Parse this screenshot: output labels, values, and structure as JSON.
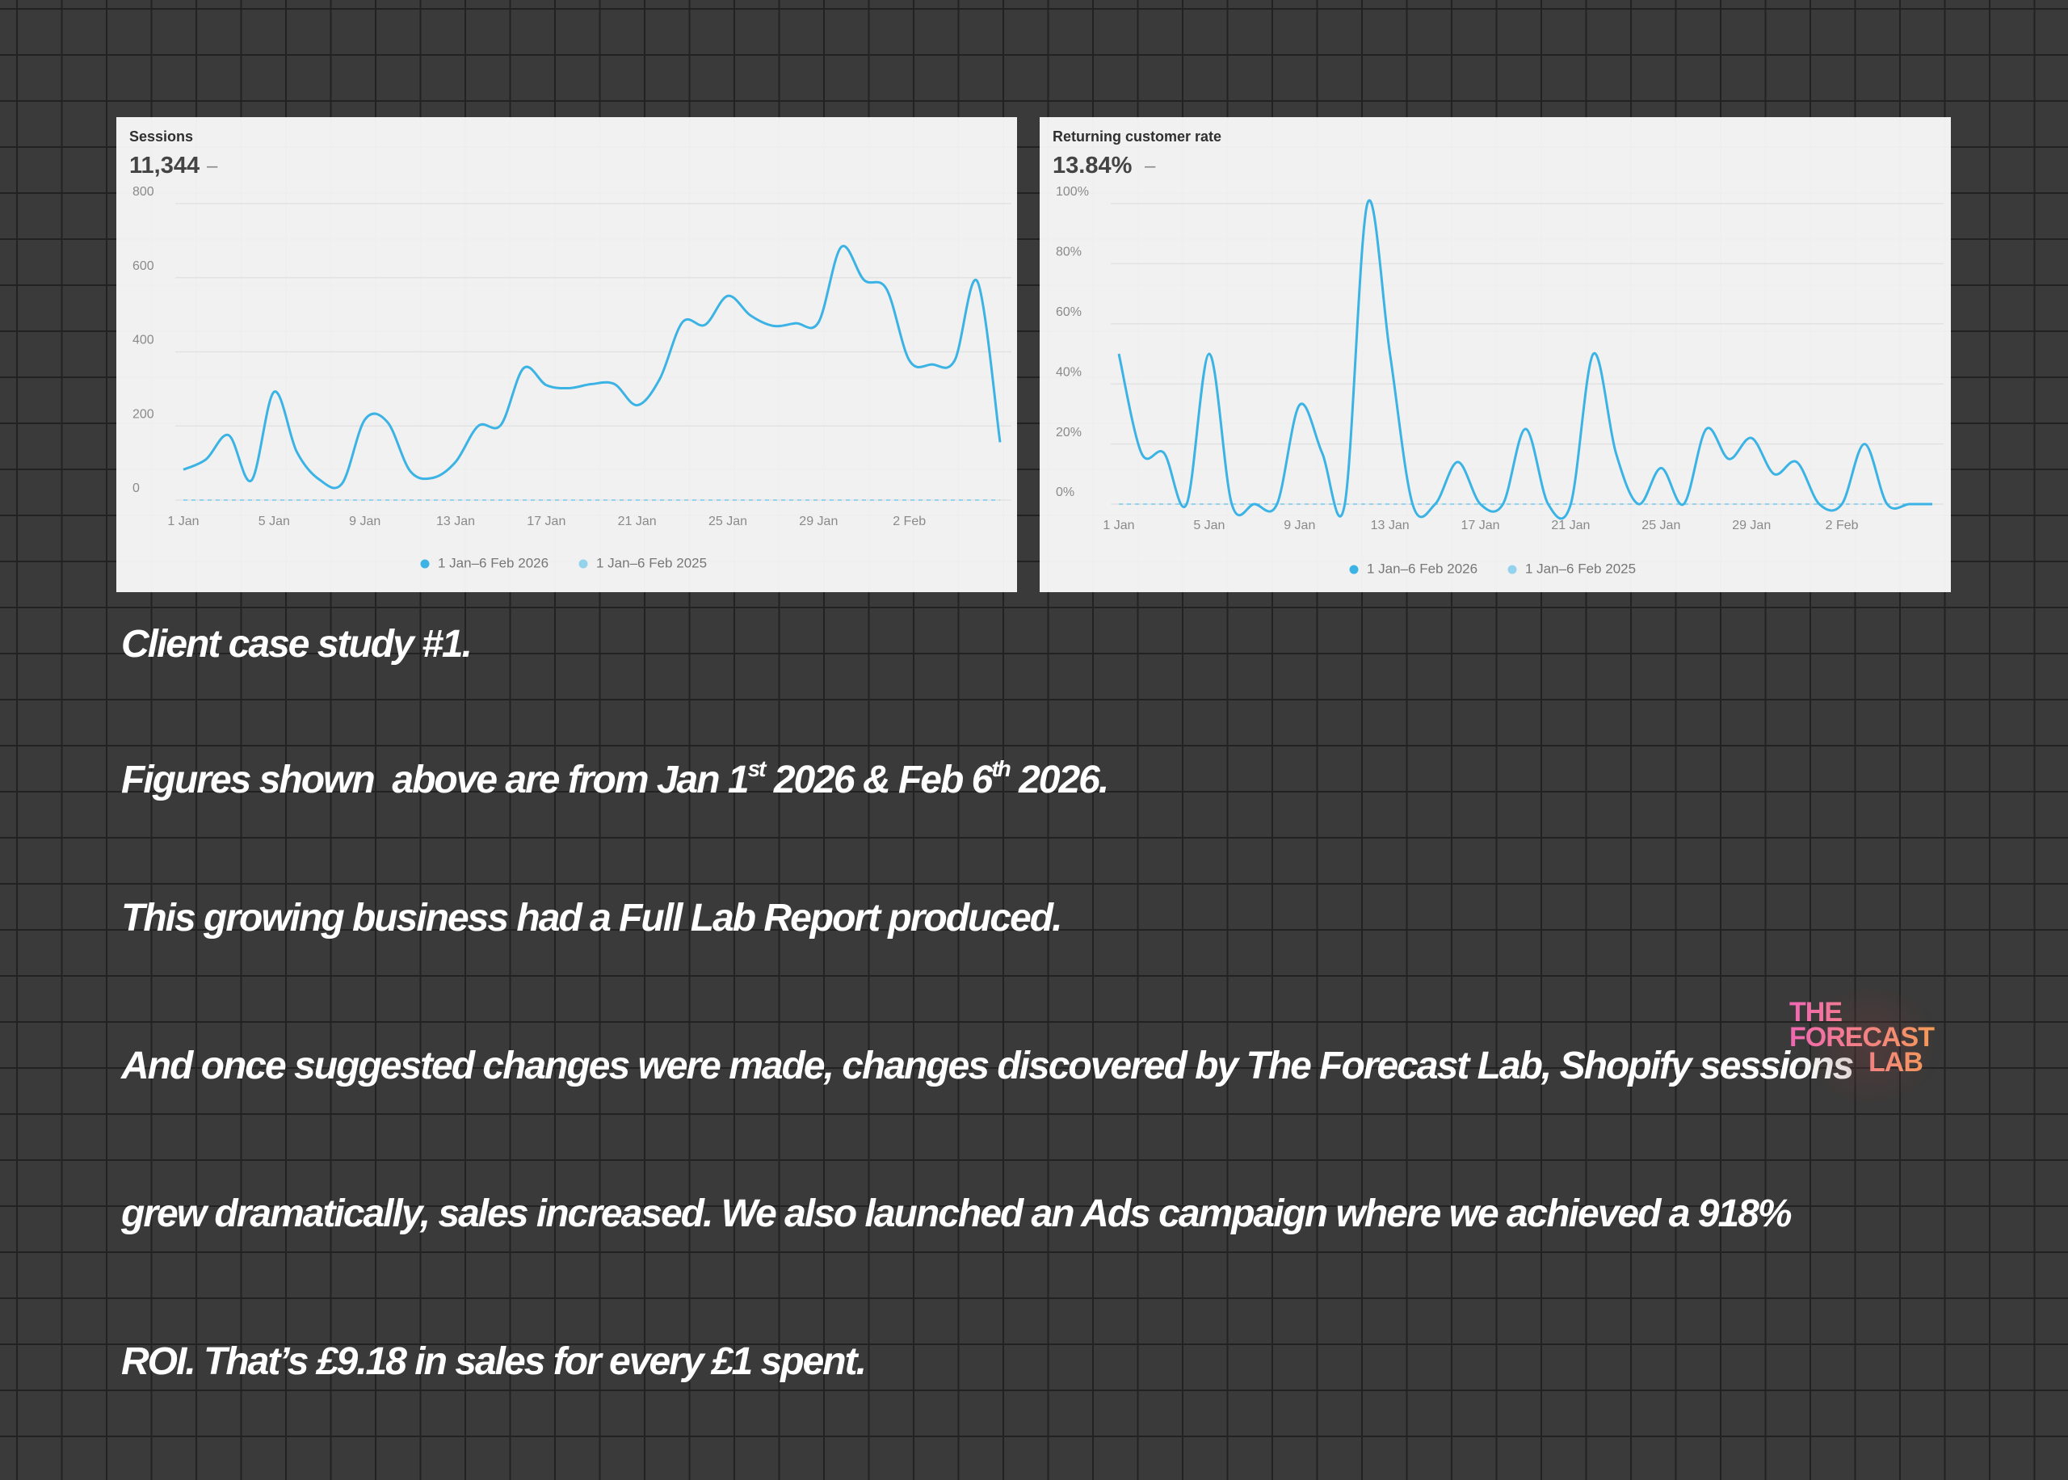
{
  "chart_data": [
    {
      "type": "line",
      "title": "Sessions",
      "metric": "11,344",
      "metric_change": "–",
      "categories": [
        "1 Jan",
        null,
        null,
        null,
        "5 Jan",
        null,
        null,
        null,
        "9 Jan",
        null,
        null,
        null,
        "13 Jan",
        null,
        null,
        null,
        "17 Jan",
        null,
        null,
        null,
        "21 Jan",
        null,
        null,
        null,
        "25 Jan",
        null,
        null,
        null,
        "29 Jan",
        null,
        null,
        null,
        "2 Feb",
        null,
        null,
        null,
        null
      ],
      "series": [
        {
          "name": "1 Jan–6 Feb 2026",
          "color": "#3bb3e4",
          "values": [
            82,
            110,
            175,
            53,
            292,
            130,
            55,
            45,
            217,
            210,
            78,
            60,
            103,
            200,
            203,
            356,
            310,
            302,
            313,
            313,
            256,
            327,
            480,
            473,
            551,
            498,
            470,
            477,
            480,
            683,
            594,
            569,
            377,
            366,
            377,
            590,
            156
          ]
        },
        {
          "name": "1 Jan–6 Feb 2025",
          "color": "#93d3ee",
          "line_style": "dashed",
          "values": [
            0,
            0,
            0,
            0,
            0,
            0,
            0,
            0,
            0,
            0,
            0,
            0,
            0,
            0,
            0,
            0,
            0,
            0,
            0,
            0,
            0,
            0,
            0,
            0,
            0,
            0,
            0,
            0,
            0,
            0,
            0,
            0,
            0,
            0,
            0,
            0,
            0
          ]
        }
      ],
      "ylim": [
        0,
        800
      ],
      "yticks": [
        0,
        200,
        400,
        600,
        800
      ],
      "grid": true
    },
    {
      "type": "line",
      "title": "Returning customer rate",
      "metric": "13.84%",
      "metric_change": "–",
      "categories": [
        "1 Jan",
        null,
        null,
        null,
        "5 Jan",
        null,
        null,
        null,
        "9 Jan",
        null,
        null,
        null,
        "13 Jan",
        null,
        null,
        null,
        "17 Jan",
        null,
        null,
        null,
        "21 Jan",
        null,
        null,
        null,
        "25 Jan",
        null,
        null,
        null,
        "29 Jan",
        null,
        null,
        null,
        "2 Feb",
        null,
        null,
        null,
        null
      ],
      "series": [
        {
          "name": "1 Jan–6 Feb 2026",
          "color": "#3bb3e4",
          "values": [
            50,
            17,
            17,
            0,
            50,
            0,
            0,
            0,
            33,
            17,
            0,
            100,
            50,
            0,
            0,
            14,
            0,
            0,
            25,
            0,
            0,
            50,
            17,
            0,
            12,
            0,
            25,
            15,
            22,
            10,
            14,
            0,
            0,
            20,
            0,
            0,
            0
          ]
        },
        {
          "name": "1 Jan–6 Feb 2025",
          "color": "#93d3ee",
          "line_style": "dashed",
          "values": [
            0,
            0,
            0,
            0,
            0,
            0,
            0,
            0,
            0,
            0,
            0,
            0,
            0,
            0,
            0,
            0,
            0,
            0,
            0,
            0,
            0,
            0,
            0,
            0,
            0,
            0,
            0,
            0,
            0,
            0,
            0,
            0,
            0,
            0,
            0,
            0,
            0
          ]
        }
      ],
      "ylim": [
        0,
        100
      ],
      "yticks": [
        {
          "value": 0,
          "label": "0%"
        },
        {
          "value": 20,
          "label": "20%"
        },
        {
          "value": 40,
          "label": "40%"
        },
        {
          "value": 60,
          "label": "60%"
        },
        {
          "value": 80,
          "label": "80%"
        },
        {
          "value": 100,
          "label": "100%"
        }
      ],
      "grid": true
    }
  ],
  "caption": {
    "heading": "Client case study #1.",
    "figures_line": [
      "Figures shown  above are from Jan 1",
      "st",
      " 2026 & Feb 6",
      "th",
      " 2026."
    ],
    "lines": [
      "This growing business had a Full Lab Report produced.",
      "And once suggested changes were made, changes discovered by The Forecast Lab, Shopify sessions",
      "grew dramatically, sales increased. We also launched an Ads campaign where we achieved a 918%",
      "ROI. That’s £9.18 in sales for every £1 spent."
    ]
  },
  "logo": {
    "lines": [
      "THE",
      "FORECAST",
      "LAB"
    ]
  }
}
